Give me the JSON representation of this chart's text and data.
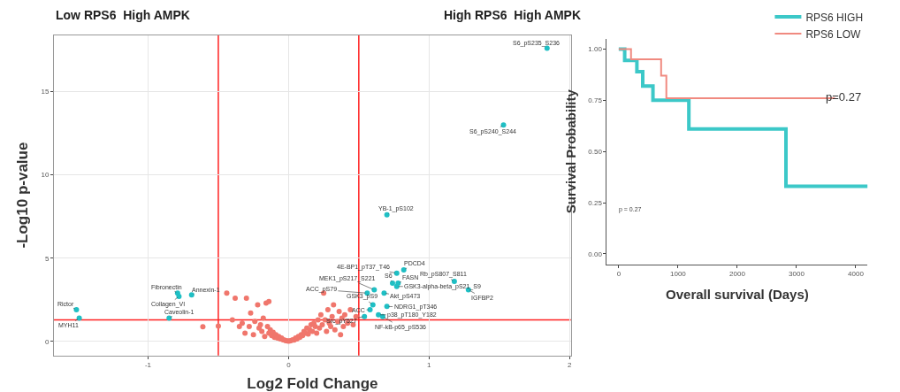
{
  "chart_data": [
    {
      "type": "scatter",
      "xlabel": "Log2 Fold Change",
      "ylabel": "-Log10 p-value",
      "xlim": [
        -1.67,
        2.01
      ],
      "xticks": [
        -1,
        0,
        1,
        2
      ],
      "ylim": [
        -0.84,
        18.4
      ],
      "yticks": [
        0,
        5,
        10,
        15
      ],
      "grid": true,
      "legend": false,
      "marker": "circle",
      "series": [
        {
          "color": "#f0766c",
          "x": [
            -0.61,
            -0.5,
            -0.44,
            -0.4,
            -0.38,
            -0.35,
            -0.33,
            -0.31,
            -0.3,
            -0.28,
            -0.27,
            -0.25,
            -0.24,
            -0.22,
            -0.21,
            -0.2,
            -0.19,
            -0.18,
            -0.17,
            -0.16,
            -0.15,
            -0.14,
            -0.14,
            -0.13,
            -0.12,
            -0.11,
            -0.1,
            -0.09,
            -0.08,
            -0.07,
            -0.06,
            -0.05,
            -0.04,
            -0.03,
            -0.02,
            -0.01,
            0.0,
            0.01,
            0.02,
            0.03,
            0.04,
            0.05,
            0.06,
            0.07,
            0.08,
            0.09,
            0.1,
            0.11,
            0.12,
            0.13,
            0.14,
            0.15,
            0.16,
            0.17,
            0.18,
            0.19,
            0.2,
            0.21,
            0.22,
            0.23,
            0.24,
            0.25,
            0.26,
            0.27,
            0.28,
            0.29,
            0.3,
            0.31,
            0.32,
            0.33,
            0.35,
            0.36,
            0.37,
            0.38,
            0.39,
            0.4,
            0.42,
            0.44,
            0.46,
            0.48
          ],
          "values": [
            0.88,
            0.92,
            2.9,
            1.3,
            2.6,
            0.9,
            1.1,
            0.5,
            2.6,
            0.9,
            1.7,
            0.4,
            1.2,
            2.2,
            0.8,
            1.0,
            0.6,
            1.4,
            0.3,
            2.3,
            0.9,
            2.4,
            0.5,
            0.7,
            0.35,
            0.55,
            0.25,
            0.4,
            0.2,
            0.3,
            0.15,
            0.2,
            0.1,
            0.08,
            0.05,
            0.03,
            0.02,
            0.03,
            0.06,
            0.1,
            0.08,
            0.2,
            0.15,
            0.3,
            0.25,
            0.4,
            0.35,
            0.6,
            0.5,
            0.8,
            0.45,
            0.7,
            1.0,
            0.6,
            1.1,
            0.9,
            0.5,
            1.3,
            0.8,
            1.6,
            1.0,
            2.9,
            1.3,
            0.6,
            1.9,
            1.1,
            0.9,
            1.5,
            2.2,
            0.7,
            1.2,
            1.8,
            0.4,
            1.4,
            0.9,
            1.6,
            1.1,
            1.9,
            1.0,
            1.5
          ]
        },
        {
          "color": "#1fbfc4",
          "x": [
            1.84,
            1.53,
            0.7,
            0.82,
            0.77,
            0.78,
            0.74,
            1.18,
            0.77,
            1.28,
            0.61,
            0.56,
            0.68,
            0.6,
            0.7,
            0.58,
            0.64,
            0.67,
            0.54,
            -0.79,
            -0.78,
            -0.69,
            -0.85,
            -1.51,
            -1.49
          ],
          "values": [
            17.6,
            13.0,
            7.6,
            4.3,
            4.1,
            3.5,
            3.5,
            3.6,
            3.3,
            3.1,
            3.1,
            2.9,
            2.9,
            2.2,
            2.1,
            1.9,
            1.6,
            1.5,
            1.5,
            2.9,
            2.7,
            2.8,
            1.4,
            1.9,
            1.4
          ]
        }
      ],
      "ref_lines": [
        {
          "axis": "x",
          "value": -0.5,
          "color": "#ff2020"
        },
        {
          "axis": "x",
          "value": 0.5,
          "color": "#ff2020"
        },
        {
          "axis": "y",
          "value": 1.3,
          "color": "#ff2020"
        }
      ],
      "annotations": [
        "Low RPS6  High AMPK",
        "High RPS6  High AMPK",
        {
          "text": "S6_pS235_S236",
          "x": 1.84,
          "y": 17.6
        },
        {
          "text": "S6_pS240_S244",
          "x": 1.53,
          "y": 13.0
        },
        {
          "text": "YB-1_pS102",
          "x": 0.7,
          "y": 7.6
        },
        {
          "text": "PDCD4",
          "x": 0.82,
          "y": 4.3
        },
        {
          "text": "4E-BP1_pT37_T46",
          "x": 0.77,
          "y": 4.1
        },
        {
          "text": "FASN",
          "x": 0.78,
          "y": 3.5
        },
        {
          "text": "S6",
          "x": 0.74,
          "y": 3.5
        },
        {
          "text": "Rb_pS807_S811",
          "x": 1.18,
          "y": 3.6
        },
        {
          "text": "GSK3-alpha-beta_pS21_S9",
          "x": 0.77,
          "y": 3.3
        },
        {
          "text": "IGFBP2",
          "x": 1.28,
          "y": 3.1
        },
        {
          "text": "MEK1_pS217_S221",
          "x": 0.61,
          "y": 3.1
        },
        {
          "text": "ACC_pS79",
          "x": 0.56,
          "y": 2.9
        },
        {
          "text": "Akt_pS473",
          "x": 0.68,
          "y": 2.9
        },
        {
          "text": "GSK3_pS9",
          "x": 0.6,
          "y": 2.2
        },
        {
          "text": "NDRG1_pT346",
          "x": 0.7,
          "y": 2.1
        },
        {
          "text": "ACC",
          "x": 0.58,
          "y": 1.9
        },
        {
          "text": "p38_pT180_Y182",
          "x": 0.64,
          "y": 1.6
        },
        {
          "text": "NF-kB-p65_pS536",
          "x": 0.67,
          "y": 1.5
        },
        {
          "text": "Src_pY527",
          "x": 0.54,
          "y": 1.5
        },
        {
          "text": "Fibronectin",
          "x": -0.79,
          "y": 2.9
        },
        {
          "text": "Collagen_VI",
          "x": -0.78,
          "y": 2.7
        },
        {
          "text": "Annexin-1",
          "x": -0.69,
          "y": 2.8
        },
        {
          "text": "Caveolin-1",
          "x": -0.85,
          "y": 1.4
        },
        {
          "text": "Rictor",
          "x": -1.51,
          "y": 1.9
        },
        {
          "text": "MYH11",
          "x": -1.49,
          "y": 1.4
        }
      ]
    },
    {
      "type": "step",
      "xlabel": "Overall survival (Days)",
      "ylabel": "Survival Probability",
      "xlim": [
        -200,
        4200
      ],
      "xticks": [
        0,
        1000,
        2000,
        3000,
        4000
      ],
      "ylim": [
        -0.05,
        1.05
      ],
      "yticks": [
        {
          "value": 0,
          "label": "0.00"
        },
        {
          "value": 0.25,
          "label": "0.25"
        },
        {
          "value": 0.5,
          "label": "0.50"
        },
        {
          "value": 0.75,
          "label": "0.75"
        },
        {
          "value": 1,
          "label": "1.00"
        }
      ],
      "grid": false,
      "legend": "top right",
      "series": [
        {
          "name": "RPS6 HIGH",
          "color": "#3cc8c8",
          "x": [
            0,
            100,
            306,
            405,
            577,
            1183,
            2821,
            4200
          ],
          "values": [
            1,
            0.945,
            0.89,
            0.82,
            0.75,
            0.61,
            0.33,
            0.33
          ]
        },
        {
          "name": "RPS6 LOW",
          "color": "#f08a80",
          "x": [
            0,
            207,
            715,
            803,
            3650
          ],
          "values": [
            1,
            0.95,
            0.87,
            0.76,
            0.76
          ]
        }
      ],
      "annotations": [
        "p=0.27",
        "p = 0.27"
      ]
    }
  ]
}
